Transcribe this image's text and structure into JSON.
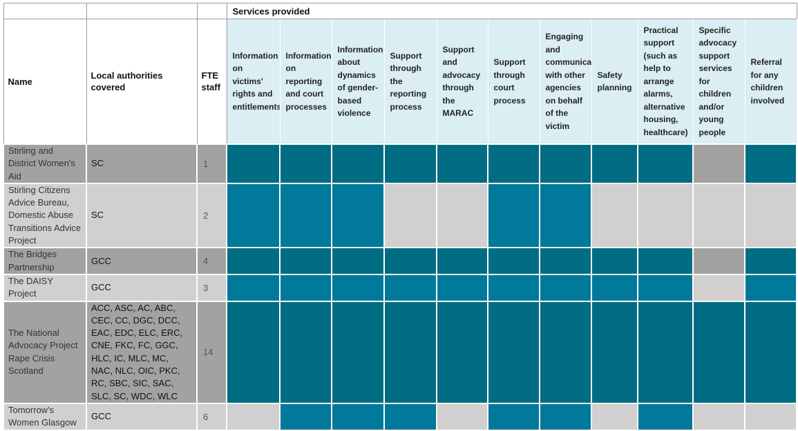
{
  "header": {
    "services_title": "Services provided",
    "name_label": "Name",
    "la_label": "Local authorities covered",
    "fte_label": "FTE staff",
    "services": [
      "Information on victims' rights and entitlements",
      "Information on reporting and court processes",
      "Information about dynamics of gender-based violence",
      "Support through the reporting process",
      "Support and advocacy through the MARAC",
      "Support through court process",
      "Engaging and communicating with other agencies on behalf of the victim",
      "Safety planning",
      "Practical support (such as help to arrange alarms, alternative housing, healthcare)",
      "Specific advocacy support services for children and/or young people",
      "Referral for any children involved"
    ]
  },
  "colors": {
    "dark_teal": "#006d82",
    "mid_teal": "#00799a",
    "dark_grey": "#a4a2a0",
    "light_grey": "#d1cfd0",
    "header_blue": "#daeef3"
  },
  "rows": [
    {
      "name": "Stirling and District Women's Aid",
      "la": "SC",
      "fte": "1",
      "cells": [
        "dark",
        "dark",
        "dark",
        "dark",
        "dark",
        "dark",
        "dark",
        "dark",
        "dark",
        "grey",
        "dark"
      ]
    },
    {
      "name": "Stirling Citizens Advice Bureau, Domestic Abuse Transitions Advice Project",
      "la": "SC",
      "fte": "2",
      "cells": [
        "mid",
        "mid",
        "mid",
        "lightgrey",
        "lightgrey",
        "mid",
        "mid",
        "lightgrey",
        "lightgrey",
        "lightgrey",
        "lightgrey"
      ]
    },
    {
      "name": "The Bridges Partnership",
      "la": "GCC",
      "fte": "4",
      "cells": [
        "dark",
        "dark",
        "dark",
        "dark",
        "dark",
        "dark",
        "dark",
        "dark",
        "dark",
        "grey",
        "dark"
      ]
    },
    {
      "name": "The DAISY Project",
      "la": "GCC",
      "fte": "3",
      "cells": [
        "mid",
        "mid",
        "mid",
        "mid",
        "mid",
        "mid",
        "mid",
        "mid",
        "mid",
        "lightgrey",
        "mid"
      ]
    },
    {
      "name": "The National Advocacy Project Rape Crisis Scotland",
      "la": "ACC, ASC, AC, ABC, CEC, CC, DGC, DCC, EAC, EDC, ELC, ERC, CNE, FKC, FC, GGC, HLC, IC, MLC, MC, NAC, NLC, OIC, PKC, RC, SBC, SIC, SAC, SLC, SC, WDC, WLC",
      "fte": "14",
      "cells": [
        "dark",
        "dark",
        "dark",
        "dark",
        "dark",
        "dark",
        "dark",
        "dark",
        "dark",
        "dark",
        "dark"
      ]
    },
    {
      "name": "Tomorrow's Women Glasgow",
      "la": "GCC",
      "fte": "6",
      "cells": [
        "lightgrey",
        "mid",
        "mid",
        "mid",
        "lightgrey",
        "mid",
        "mid",
        "lightgrey",
        "mid",
        "lightgrey",
        "lightgrey"
      ]
    }
  ]
}
